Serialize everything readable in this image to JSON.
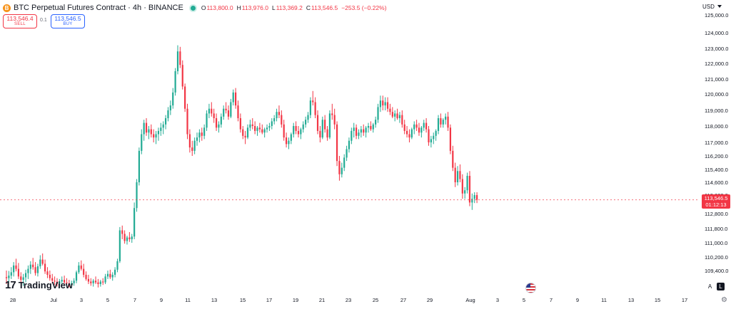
{
  "header": {
    "coin_icon": "B",
    "symbol": "BTC Perpetual Futures Contract · 4h · BINANCE",
    "live_indicator": "live-dot-icon",
    "ohlc": {
      "o_label": "O",
      "o": "113,800.0",
      "h_label": "H",
      "h": "113,976.0",
      "l_label": "L",
      "l": "113,369.2",
      "c_label": "C",
      "c": "113,546.5",
      "change": "−253.5 (−0.22%)"
    }
  },
  "trade": {
    "sell_price": "113,546.4",
    "sell_label": "SELL",
    "spread": "0.1",
    "buy_price": "113,546.5",
    "buy_label": "BUY"
  },
  "currency": "USD",
  "logo_text": "TradingView",
  "logo_mark": "17",
  "last_price": {
    "price": "113,546.5",
    "countdown": "01:12:13"
  },
  "controls": {
    "auto": "A",
    "log": "L"
  },
  "colors": {
    "up": "#22ab94",
    "down": "#f23645",
    "axis_text": "#131722",
    "price_line": "#f23645"
  },
  "chart_data": {
    "type": "candlestick",
    "interval": "4h",
    "y_tick_labels": [
      "125,000.0",
      "124,000.0",
      "123,000.0",
      "122,000.0",
      "121,000.0",
      "120,000.0",
      "119,000.0",
      "118,000.0",
      "117,000.0",
      "116,200.0",
      "115,400.0",
      "114,600.0",
      "113,800.0",
      "112,800.0",
      "111,800.0",
      "111,000.0",
      "110,200.0",
      "109,400.0"
    ],
    "x_tick_labels": [
      "28",
      "Jul",
      "3",
      "5",
      "7",
      "9",
      "11",
      "13",
      "15",
      "17",
      "19",
      "21",
      "23",
      "25",
      "27",
      "29",
      "Aug",
      "3",
      "5",
      "7",
      "9",
      "11",
      "13",
      "15",
      "17"
    ],
    "last_price": 113546.5,
    "ohlc": [
      [
        109010,
        109400,
        108600,
        108950
      ],
      [
        108950,
        109380,
        108700,
        109100
      ],
      [
        109100,
        109600,
        108900,
        109300
      ],
      [
        109300,
        109900,
        109050,
        109700
      ],
      [
        109700,
        110100,
        109350,
        109500
      ],
      [
        109500,
        109850,
        108900,
        109050
      ],
      [
        109050,
        109300,
        108650,
        108850
      ],
      [
        108850,
        109200,
        108500,
        109000
      ],
      [
        109000,
        109450,
        108700,
        109250
      ],
      [
        109250,
        109700,
        108900,
        109500
      ],
      [
        109500,
        109950,
        109200,
        109750
      ],
      [
        109750,
        110150,
        109450,
        109600
      ],
      [
        109600,
        109900,
        109100,
        109250
      ],
      [
        109250,
        109800,
        109050,
        109650
      ],
      [
        109650,
        110300,
        109500,
        110050
      ],
      [
        110050,
        110400,
        109700,
        109800
      ],
      [
        109800,
        110050,
        109200,
        109350
      ],
      [
        109350,
        109600,
        108950,
        109150
      ],
      [
        109150,
        109400,
        108800,
        108950
      ],
      [
        108950,
        109200,
        108650,
        108800
      ],
      [
        108800,
        109050,
        108550,
        108750
      ],
      [
        108750,
        108950,
        108450,
        108600
      ],
      [
        108600,
        108900,
        108400,
        108750
      ],
      [
        108750,
        109050,
        108550,
        108850
      ],
      [
        108850,
        109100,
        108600,
        108700
      ],
      [
        108700,
        108950,
        108450,
        108650
      ],
      [
        108650,
        108850,
        108400,
        108550
      ],
      [
        108550,
        108800,
        108350,
        108650
      ],
      [
        108650,
        108950,
        108500,
        108800
      ],
      [
        108800,
        109400,
        108650,
        109300
      ],
      [
        109300,
        109900,
        109200,
        109700
      ],
      [
        109700,
        110000,
        109400,
        109500
      ],
      [
        109500,
        109800,
        109000,
        109150
      ],
      [
        109150,
        109350,
        108800,
        108900
      ],
      [
        108900,
        109150,
        108600,
        108750
      ],
      [
        108750,
        108950,
        108500,
        108650
      ],
      [
        108650,
        108900,
        108450,
        108800
      ],
      [
        108800,
        109050,
        108600,
        108700
      ],
      [
        108700,
        108900,
        108400,
        108600
      ],
      [
        108600,
        108850,
        108450,
        108750
      ],
      [
        108750,
        108950,
        108550,
        108700
      ],
      [
        108700,
        109200,
        108600,
        109050
      ],
      [
        109050,
        109400,
        108900,
        109200
      ],
      [
        109200,
        109450,
        108900,
        109000
      ],
      [
        109000,
        109300,
        108800,
        109150
      ],
      [
        109150,
        109600,
        109000,
        109450
      ],
      [
        109450,
        110100,
        109300,
        109950
      ],
      [
        109950,
        111900,
        109850,
        111700
      ],
      [
        111700,
        112000,
        111200,
        111500
      ],
      [
        111500,
        111700,
        110950,
        111100
      ],
      [
        111100,
        111400,
        110900,
        111300
      ],
      [
        111300,
        111600,
        111050,
        111200
      ],
      [
        111200,
        111500,
        111000,
        111350
      ],
      [
        111350,
        113400,
        111200,
        113100
      ],
      [
        113100,
        114800,
        112900,
        114600
      ],
      [
        114600,
        116700,
        114400,
        116500
      ],
      [
        116500,
        117800,
        116300,
        117500
      ],
      [
        117500,
        118400,
        117100,
        118200
      ],
      [
        118200,
        118500,
        117400,
        117600
      ],
      [
        117600,
        118000,
        117200,
        117800
      ],
      [
        117800,
        118100,
        117300,
        117500
      ],
      [
        117500,
        117800,
        117000,
        117300
      ],
      [
        117300,
        117700,
        116900,
        117500
      ],
      [
        117500,
        117900,
        117100,
        117700
      ],
      [
        117700,
        118200,
        117400,
        117900
      ],
      [
        117900,
        118300,
        117500,
        118100
      ],
      [
        118100,
        118700,
        117800,
        118500
      ],
      [
        118500,
        119200,
        118300,
        119000
      ],
      [
        119000,
        119600,
        118700,
        119300
      ],
      [
        119300,
        120400,
        119100,
        120100
      ],
      [
        120100,
        121700,
        119900,
        121500
      ],
      [
        121500,
        123200,
        121300,
        122800
      ],
      [
        122800,
        123100,
        121700,
        121900
      ],
      [
        121900,
        122200,
        120300,
        120500
      ],
      [
        120500,
        120700,
        118900,
        119100
      ],
      [
        119100,
        119400,
        117200,
        117500
      ],
      [
        117500,
        117800,
        116400,
        116700
      ],
      [
        116700,
        117100,
        116200,
        116500
      ],
      [
        116500,
        117300,
        116300,
        117100
      ],
      [
        117100,
        117600,
        116800,
        117300
      ],
      [
        117300,
        117800,
        117000,
        117600
      ],
      [
        117600,
        117900,
        117100,
        117400
      ],
      [
        117400,
        118100,
        117200,
        117900
      ],
      [
        117900,
        119000,
        117700,
        118800
      ],
      [
        118800,
        119400,
        118500,
        119100
      ],
      [
        119100,
        119500,
        118600,
        118800
      ],
      [
        118800,
        119100,
        118200,
        118500
      ],
      [
        118500,
        118800,
        117700,
        117900
      ],
      [
        117900,
        118300,
        117600,
        118100
      ],
      [
        118100,
        118800,
        117900,
        118600
      ],
      [
        118600,
        119300,
        118400,
        119100
      ],
      [
        119100,
        119500,
        118800,
        119000
      ],
      [
        119000,
        119300,
        118400,
        118600
      ],
      [
        118600,
        119700,
        118500,
        119500
      ],
      [
        119500,
        120300,
        119300,
        120100
      ],
      [
        120100,
        120400,
        119100,
        119300
      ],
      [
        119300,
        119600,
        118300,
        118500
      ],
      [
        118500,
        118800,
        117600,
        117800
      ],
      [
        117800,
        118000,
        117200,
        117400
      ],
      [
        117400,
        117700,
        116900,
        117300
      ],
      [
        117300,
        118100,
        117200,
        117900
      ],
      [
        117900,
        118400,
        117700,
        118100
      ],
      [
        118100,
        118500,
        117800,
        118000
      ],
      [
        118000,
        118300,
        117500,
        117700
      ],
      [
        117700,
        118000,
        117400,
        117900
      ],
      [
        117900,
        118200,
        117600,
        117800
      ],
      [
        117800,
        118100,
        117500,
        117600
      ],
      [
        117600,
        117900,
        117300,
        117800
      ],
      [
        117800,
        118100,
        117600,
        117900
      ],
      [
        117900,
        118200,
        117700,
        118000
      ],
      [
        118000,
        118500,
        117800,
        118300
      ],
      [
        118300,
        118700,
        118100,
        118500
      ],
      [
        118500,
        119100,
        118300,
        118900
      ],
      [
        118900,
        119300,
        118500,
        118700
      ],
      [
        118700,
        119000,
        117900,
        118100
      ],
      [
        118100,
        118400,
        117100,
        117300
      ],
      [
        117300,
        117600,
        116700,
        116900
      ],
      [
        116900,
        117300,
        116600,
        117100
      ],
      [
        117100,
        117600,
        116900,
        117500
      ],
      [
        117500,
        118200,
        117300,
        118000
      ],
      [
        118000,
        118300,
        117500,
        117700
      ],
      [
        117700,
        118000,
        117300,
        117500
      ],
      [
        117500,
        117900,
        117200,
        117800
      ],
      [
        117800,
        118300,
        117600,
        118100
      ],
      [
        118100,
        118600,
        117900,
        118400
      ],
      [
        118400,
        118900,
        118200,
        118700
      ],
      [
        118700,
        119800,
        118500,
        119600
      ],
      [
        119600,
        120200,
        119300,
        119500
      ],
      [
        119500,
        119800,
        118500,
        118700
      ],
      [
        118700,
        119000,
        117500,
        117700
      ],
      [
        117700,
        118000,
        117000,
        117300
      ],
      [
        117300,
        118600,
        117200,
        118400
      ],
      [
        118400,
        118700,
        117600,
        117800
      ],
      [
        117800,
        118000,
        117100,
        117300
      ],
      [
        117300,
        119000,
        117200,
        118800
      ],
      [
        118800,
        119400,
        118400,
        118700
      ],
      [
        118700,
        119100,
        117800,
        118100
      ],
      [
        118100,
        118300,
        115600,
        115900
      ],
      [
        115900,
        116200,
        114700,
        115100
      ],
      [
        115100,
        115800,
        114900,
        115500
      ],
      [
        115500,
        116300,
        115300,
        116100
      ],
      [
        116100,
        116800,
        115900,
        116600
      ],
      [
        116600,
        117300,
        116400,
        117100
      ],
      [
        117100,
        117900,
        116900,
        117700
      ],
      [
        117700,
        118200,
        117300,
        117900
      ],
      [
        117900,
        118100,
        117200,
        117400
      ],
      [
        117400,
        117800,
        117200,
        117600
      ],
      [
        117600,
        118000,
        117300,
        117800
      ],
      [
        117800,
        118100,
        117400,
        117600
      ],
      [
        117600,
        118000,
        117300,
        117900
      ],
      [
        117900,
        118200,
        117600,
        118000
      ],
      [
        118000,
        118300,
        117700,
        117800
      ],
      [
        117800,
        118200,
        117600,
        118100
      ],
      [
        118100,
        118600,
        117900,
        118400
      ],
      [
        118400,
        119400,
        118200,
        119200
      ],
      [
        119200,
        119900,
        118900,
        119600
      ],
      [
        119600,
        119900,
        119000,
        119300
      ],
      [
        119300,
        119800,
        119000,
        119500
      ],
      [
        119500,
        119800,
        118900,
        119100
      ],
      [
        119100,
        119400,
        118700,
        118900
      ],
      [
        118900,
        119200,
        118500,
        118600
      ],
      [
        118600,
        119000,
        118300,
        118800
      ],
      [
        118800,
        119100,
        118400,
        118500
      ],
      [
        118500,
        118900,
        118200,
        118700
      ],
      [
        118700,
        119000,
        117900,
        118100
      ],
      [
        118100,
        118400,
        117500,
        117700
      ],
      [
        117700,
        118000,
        117300,
        117500
      ],
      [
        117500,
        117800,
        117000,
        117300
      ],
      [
        117300,
        117900,
        117200,
        117800
      ],
      [
        117800,
        118300,
        117500,
        118100
      ],
      [
        118100,
        118400,
        117700,
        117900
      ],
      [
        117900,
        118200,
        117400,
        117600
      ],
      [
        117600,
        118000,
        117300,
        117900
      ],
      [
        117900,
        118400,
        117700,
        118200
      ],
      [
        118200,
        118500,
        117600,
        117800
      ],
      [
        117800,
        118000,
        116800,
        117000
      ],
      [
        117000,
        117400,
        116700,
        117200
      ],
      [
        117200,
        117600,
        116900,
        117400
      ],
      [
        117400,
        117800,
        117100,
        117700
      ],
      [
        117700,
        118700,
        117500,
        118500
      ],
      [
        118500,
        118800,
        117900,
        118100
      ],
      [
        118100,
        118500,
        117900,
        118400
      ],
      [
        118400,
        118800,
        118100,
        118600
      ],
      [
        118600,
        118900,
        117700,
        117900
      ],
      [
        117900,
        118100,
        116300,
        116500
      ],
      [
        116500,
        116800,
        115300,
        115500
      ],
      [
        115500,
        115800,
        114300,
        114600
      ],
      [
        114600,
        115600,
        114400,
        115300
      ],
      [
        115300,
        115700,
        114600,
        114800
      ],
      [
        114800,
        115100,
        113600,
        113900
      ],
      [
        113900,
        114300,
        113600,
        114100
      ],
      [
        114100,
        115200,
        113900,
        115000
      ],
      [
        115000,
        115300,
        113200,
        113400
      ],
      [
        113400,
        113900,
        113000,
        113600
      ],
      [
        113600,
        113976,
        113369,
        113800
      ],
      [
        113800,
        113976,
        113369.2,
        113546.5
      ]
    ]
  }
}
